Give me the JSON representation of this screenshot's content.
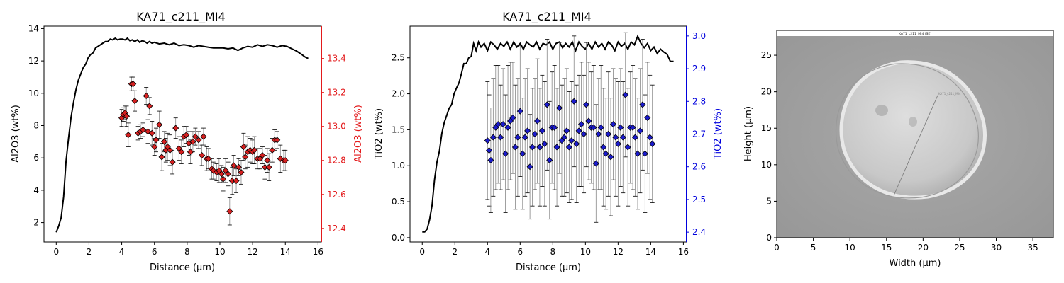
{
  "figure": {
    "panel1_title": "KA71_c211_MI4",
    "panel2_title": "KA71_c211_MI4",
    "sem_caption": "KA71_c211_MI4 (SE)",
    "sem_transect_label": "KA71_c211_MI4"
  },
  "chart_data": [
    {
      "type": "line",
      "title": "KA71_c211_MI4",
      "xlabel": "Distance (µm)",
      "ylabel": "Al2O3 (wt%)",
      "y2label": "Al2O3 (wt%)",
      "xlim": [
        -0.75,
        16.2
      ],
      "ylim": [
        0.8,
        14.15
      ],
      "y2lim": [
        12.32,
        13.59
      ],
      "xticks": [
        "0",
        "2",
        "4",
        "6",
        "8",
        "10",
        "12",
        "14",
        "16"
      ],
      "yticks": [
        "2",
        "4",
        "6",
        "8",
        "10",
        "12",
        "14"
      ],
      "y2ticks": [
        "12.4",
        "12.6",
        "12.8",
        "13.0",
        "13.2",
        "13.4"
      ],
      "grid": false,
      "colors": {
        "line": "#000000",
        "marker": "#d62020",
        "right_axis": "#e31a1c",
        "errorbar": "#888888"
      },
      "profile": {
        "name": "",
        "x": [
          0,
          0.15,
          0.3,
          0.45,
          0.6,
          0.75,
          0.9,
          1.05,
          1.2,
          1.35,
          1.5,
          1.65,
          1.8,
          1.95,
          2.1,
          2.25,
          2.4,
          2.55,
          2.7,
          2.85,
          3.0,
          3.15,
          3.3,
          3.45,
          3.6,
          3.75,
          3.9,
          4.05,
          4.2,
          4.35,
          4.5,
          4.65,
          4.8,
          4.95,
          5.1,
          5.25,
          5.4,
          5.55,
          5.7,
          5.85,
          6.0,
          6.3,
          6.6,
          6.9,
          7.2,
          7.5,
          7.8,
          8.1,
          8.4,
          8.7,
          9.0,
          9.3,
          9.6,
          9.9,
          10.2,
          10.5,
          10.8,
          11.1,
          11.4,
          11.7,
          12.0,
          12.3,
          12.6,
          12.9,
          13.2,
          13.5,
          13.8,
          14.1,
          14.4,
          14.7,
          15.0,
          15.2,
          15.4
        ],
        "values": [
          1.4,
          1.8,
          2.3,
          3.6,
          5.8,
          7.2,
          8.5,
          9.4,
          10.2,
          10.8,
          11.2,
          11.6,
          11.8,
          12.2,
          12.4,
          12.5,
          12.8,
          12.9,
          13.0,
          13.1,
          13.2,
          13.2,
          13.35,
          13.3,
          13.4,
          13.3,
          13.35,
          13.35,
          13.3,
          13.4,
          13.25,
          13.3,
          13.2,
          13.3,
          13.15,
          13.25,
          13.2,
          13.1,
          13.2,
          13.1,
          13.15,
          13.05,
          13.1,
          13.0,
          13.1,
          12.95,
          13.0,
          12.95,
          12.85,
          12.95,
          12.9,
          12.85,
          12.8,
          12.8,
          12.8,
          12.75,
          12.8,
          12.65,
          12.8,
          12.9,
          12.85,
          13.0,
          12.9,
          13.0,
          12.95,
          12.85,
          12.95,
          12.9,
          12.75,
          12.6,
          12.4,
          12.25,
          12.15
        ]
      },
      "points": {
        "name": "",
        "x": [
          4.0,
          4.1,
          4.2,
          4.3,
          4.4,
          4.6,
          4.7,
          4.8,
          5.0,
          5.15,
          5.3,
          5.5,
          5.6,
          5.7,
          5.85,
          6.0,
          6.1,
          6.3,
          6.45,
          6.6,
          6.7,
          6.8,
          6.95,
          7.1,
          7.3,
          7.5,
          7.65,
          7.8,
          7.95,
          8.1,
          8.2,
          8.35,
          8.5,
          8.7,
          8.9,
          9.0,
          9.2,
          9.3,
          9.5,
          9.6,
          9.8,
          9.95,
          10.1,
          10.2,
          10.35,
          10.5,
          10.6,
          10.75,
          10.85,
          11.0,
          11.15,
          11.3,
          11.45,
          11.55,
          11.7,
          11.85,
          12.0,
          12.1,
          12.3,
          12.45,
          12.6,
          12.75,
          12.9,
          13.0,
          13.2,
          13.35,
          13.5,
          13.7,
          13.9,
          14.0
        ],
        "values": [
          13.05,
          13.07,
          13.08,
          13.06,
          12.95,
          13.25,
          13.25,
          13.15,
          12.96,
          12.97,
          12.98,
          13.18,
          12.97,
          13.12,
          12.96,
          12.88,
          12.92,
          13.01,
          12.82,
          12.91,
          12.86,
          12.88,
          12.86,
          12.79,
          12.99,
          12.87,
          12.85,
          12.94,
          12.95,
          12.9,
          12.85,
          12.91,
          12.94,
          12.92,
          12.83,
          12.94,
          12.81,
          12.81,
          12.75,
          12.74,
          12.73,
          12.74,
          12.72,
          12.69,
          12.74,
          12.72,
          12.5,
          12.68,
          12.77,
          12.68,
          12.76,
          12.73,
          12.88,
          12.82,
          12.85,
          12.86,
          12.85,
          12.86,
          12.81,
          12.81,
          12.83,
          12.76,
          12.8,
          12.76,
          12.86,
          12.92,
          12.92,
          12.81,
          12.8,
          12.8
        ],
        "err_lo": [
          0.05,
          0.04,
          0.04,
          0.06,
          0.07,
          0.04,
          0.04,
          0.06,
          0.04,
          0.04,
          0.04,
          0.05,
          0.07,
          0.05,
          0.07,
          0.05,
          0.07,
          0.08,
          0.08,
          0.06,
          0.07,
          0.08,
          0.09,
          0.07,
          0.06,
          0.07,
          0.07,
          0.06,
          0.05,
          0.07,
          0.07,
          0.06,
          0.05,
          0.05,
          0.06,
          0.05,
          0.07,
          0.06,
          0.06,
          0.05,
          0.05,
          0.07,
          0.05,
          0.07,
          0.07,
          0.07,
          0.08,
          0.08,
          0.06,
          0.07,
          0.05,
          0.07,
          0.08,
          0.07,
          0.09,
          0.07,
          0.07,
          0.08,
          0.06,
          0.06,
          0.05,
          0.07,
          0.07,
          0.08,
          0.07,
          0.06,
          0.05,
          0.08,
          0.06,
          0.06
        ],
        "err_hi": [
          0.05,
          0.04,
          0.04,
          0.06,
          0.07,
          0.04,
          0.04,
          0.06,
          0.04,
          0.04,
          0.04,
          0.05,
          0.07,
          0.05,
          0.07,
          0.05,
          0.07,
          0.08,
          0.08,
          0.06,
          0.07,
          0.08,
          0.09,
          0.07,
          0.06,
          0.07,
          0.07,
          0.06,
          0.05,
          0.07,
          0.07,
          0.06,
          0.05,
          0.05,
          0.06,
          0.05,
          0.07,
          0.06,
          0.06,
          0.05,
          0.05,
          0.07,
          0.05,
          0.07,
          0.07,
          0.07,
          0.08,
          0.08,
          0.06,
          0.07,
          0.05,
          0.07,
          0.08,
          0.07,
          0.09,
          0.07,
          0.07,
          0.08,
          0.06,
          0.06,
          0.05,
          0.07,
          0.07,
          0.08,
          0.07,
          0.06,
          0.05,
          0.08,
          0.06,
          0.06
        ]
      }
    },
    {
      "type": "line",
      "title": "KA71_c211_MI4",
      "xlabel": "Distance (µm)",
      "ylabel": "TiO2 (wt%)",
      "y2label": "TiO2 (wt%)",
      "xlim": [
        -0.75,
        16.2
      ],
      "ylim": [
        -0.06,
        2.94
      ],
      "y2lim": [
        2.37,
        3.03
      ],
      "xticks": [
        "0",
        "2",
        "4",
        "6",
        "8",
        "10",
        "12",
        "14",
        "16"
      ],
      "yticks": [
        "0.0",
        "0.5",
        "1.0",
        "1.5",
        "2.0",
        "2.5"
      ],
      "y2ticks": [
        "2.4",
        "2.5",
        "2.6",
        "2.7",
        "2.8",
        "2.9",
        "3.0"
      ],
      "grid": false,
      "colors": {
        "line": "#000000",
        "marker": "#1a1acc",
        "right_axis": "#0000dd",
        "errorbar": "#888888"
      },
      "profile": {
        "name": "",
        "x": [
          0,
          0.15,
          0.3,
          0.45,
          0.6,
          0.75,
          0.9,
          1.05,
          1.2,
          1.35,
          1.5,
          1.65,
          1.8,
          1.95,
          2.1,
          2.25,
          2.4,
          2.55,
          2.7,
          2.85,
          3.0,
          3.15,
          3.3,
          3.45,
          3.6,
          3.8,
          4.0,
          4.2,
          4.4,
          4.6,
          4.8,
          5.0,
          5.2,
          5.4,
          5.6,
          5.8,
          6.0,
          6.2,
          6.4,
          6.6,
          6.8,
          7.0,
          7.2,
          7.4,
          7.6,
          7.8,
          8.0,
          8.2,
          8.4,
          8.6,
          8.8,
          9.0,
          9.2,
          9.4,
          9.6,
          9.8,
          10.0,
          10.2,
          10.4,
          10.6,
          10.8,
          11.0,
          11.2,
          11.4,
          11.6,
          11.8,
          12.0,
          12.2,
          12.4,
          12.6,
          12.8,
          13.0,
          13.2,
          13.4,
          13.6,
          13.8,
          14.0,
          14.2,
          14.4,
          14.6,
          14.8,
          15.0,
          15.2,
          15.4
        ],
        "values": [
          0.08,
          0.08,
          0.12,
          0.25,
          0.45,
          0.8,
          1.05,
          1.2,
          1.45,
          1.6,
          1.7,
          1.8,
          1.85,
          2.0,
          2.08,
          2.15,
          2.28,
          2.42,
          2.42,
          2.5,
          2.52,
          2.7,
          2.6,
          2.72,
          2.65,
          2.7,
          2.6,
          2.72,
          2.68,
          2.62,
          2.7,
          2.66,
          2.72,
          2.62,
          2.72,
          2.65,
          2.7,
          2.62,
          2.72,
          2.68,
          2.65,
          2.72,
          2.62,
          2.7,
          2.68,
          2.72,
          2.62,
          2.7,
          2.72,
          2.64,
          2.7,
          2.65,
          2.72,
          2.6,
          2.72,
          2.66,
          2.62,
          2.7,
          2.62,
          2.72,
          2.65,
          2.7,
          2.62,
          2.72,
          2.68,
          2.6,
          2.72,
          2.66,
          2.7,
          2.62,
          2.72,
          2.68,
          2.8,
          2.7,
          2.64,
          2.7,
          2.6,
          2.65,
          2.56,
          2.62,
          2.58,
          2.55,
          2.45,
          2.45
        ]
      },
      "points": {
        "name": "",
        "x": [
          4.0,
          4.1,
          4.2,
          4.35,
          4.5,
          4.65,
          4.8,
          4.95,
          5.1,
          5.25,
          5.4,
          5.55,
          5.7,
          5.85,
          6.0,
          6.15,
          6.3,
          6.45,
          6.6,
          6.75,
          6.9,
          7.05,
          7.2,
          7.35,
          7.5,
          7.65,
          7.8,
          7.95,
          8.1,
          8.25,
          8.4,
          8.55,
          8.7,
          8.85,
          9.0,
          9.15,
          9.3,
          9.45,
          9.6,
          9.75,
          9.9,
          10.05,
          10.2,
          10.35,
          10.5,
          10.65,
          10.8,
          10.95,
          11.1,
          11.25,
          11.4,
          11.55,
          11.7,
          11.85,
          12.0,
          12.15,
          12.3,
          12.45,
          12.6,
          12.75,
          12.9,
          13.05,
          13.2,
          13.35,
          13.5,
          13.65,
          13.8,
          13.95,
          14.1
        ],
        "values": [
          2.68,
          2.65,
          2.62,
          2.69,
          2.72,
          2.73,
          2.69,
          2.73,
          2.64,
          2.72,
          2.74,
          2.75,
          2.66,
          2.69,
          2.77,
          2.64,
          2.69,
          2.71,
          2.6,
          2.66,
          2.7,
          2.74,
          2.66,
          2.71,
          2.67,
          2.79,
          2.62,
          2.72,
          2.72,
          2.66,
          2.78,
          2.68,
          2.69,
          2.71,
          2.66,
          2.68,
          2.8,
          2.67,
          2.71,
          2.73,
          2.7,
          2.79,
          2.74,
          2.72,
          2.72,
          2.61,
          2.7,
          2.72,
          2.66,
          2.64,
          2.7,
          2.63,
          2.73,
          2.69,
          2.67,
          2.72,
          2.69,
          2.82,
          2.66,
          2.72,
          2.72,
          2.69,
          2.64,
          2.71,
          2.79,
          2.64,
          2.75,
          2.69,
          2.67
        ],
        "err_lo": [
          0.18,
          0.17,
          0.16,
          0.18,
          0.19,
          0.18,
          0.16,
          0.17,
          0.18,
          0.19,
          0.18,
          0.17,
          0.19,
          0.18,
          0.2,
          0.17,
          0.18,
          0.19,
          0.16,
          0.18,
          0.17,
          0.19,
          0.18,
          0.17,
          0.19,
          0.2,
          0.18,
          0.17,
          0.19,
          0.18,
          0.2,
          0.17,
          0.18,
          0.19,
          0.17,
          0.18,
          0.2,
          0.18,
          0.17,
          0.19,
          0.18,
          0.19,
          0.18,
          0.17,
          0.19,
          0.18,
          0.17,
          0.19,
          0.18,
          0.17,
          0.19,
          0.18,
          0.17,
          0.18,
          0.19,
          0.18,
          0.17,
          0.19,
          0.18,
          0.17,
          0.19,
          0.18,
          0.17,
          0.19,
          0.2,
          0.18,
          0.17,
          0.19,
          0.18
        ],
        "err_hi": [
          0.18,
          0.17,
          0.16,
          0.18,
          0.19,
          0.18,
          0.16,
          0.17,
          0.18,
          0.19,
          0.18,
          0.17,
          0.19,
          0.18,
          0.2,
          0.17,
          0.18,
          0.19,
          0.16,
          0.18,
          0.17,
          0.19,
          0.18,
          0.17,
          0.19,
          0.2,
          0.18,
          0.17,
          0.19,
          0.18,
          0.2,
          0.17,
          0.18,
          0.19,
          0.17,
          0.18,
          0.2,
          0.18,
          0.17,
          0.19,
          0.18,
          0.19,
          0.18,
          0.17,
          0.19,
          0.18,
          0.17,
          0.19,
          0.18,
          0.17,
          0.19,
          0.18,
          0.17,
          0.18,
          0.19,
          0.18,
          0.17,
          0.19,
          0.18,
          0.17,
          0.19,
          0.18,
          0.17,
          0.19,
          0.2,
          0.18,
          0.17,
          0.19,
          0.18
        ]
      }
    },
    {
      "type": "image",
      "title": "",
      "xlabel": "Width (µm)",
      "ylabel": "Height (µm)",
      "xlim": [
        0,
        37.8
      ],
      "ylim": [
        0,
        28.4
      ],
      "xticks": [
        "0",
        "5",
        "10",
        "15",
        "20",
        "25",
        "30",
        "35"
      ],
      "yticks": [
        "0",
        "5",
        "10",
        "15",
        "20",
        "25"
      ],
      "grid": false,
      "transect": {
        "x1": 16,
        "y1": 5.8,
        "x2": 22,
        "y2": 19.5
      }
    }
  ]
}
